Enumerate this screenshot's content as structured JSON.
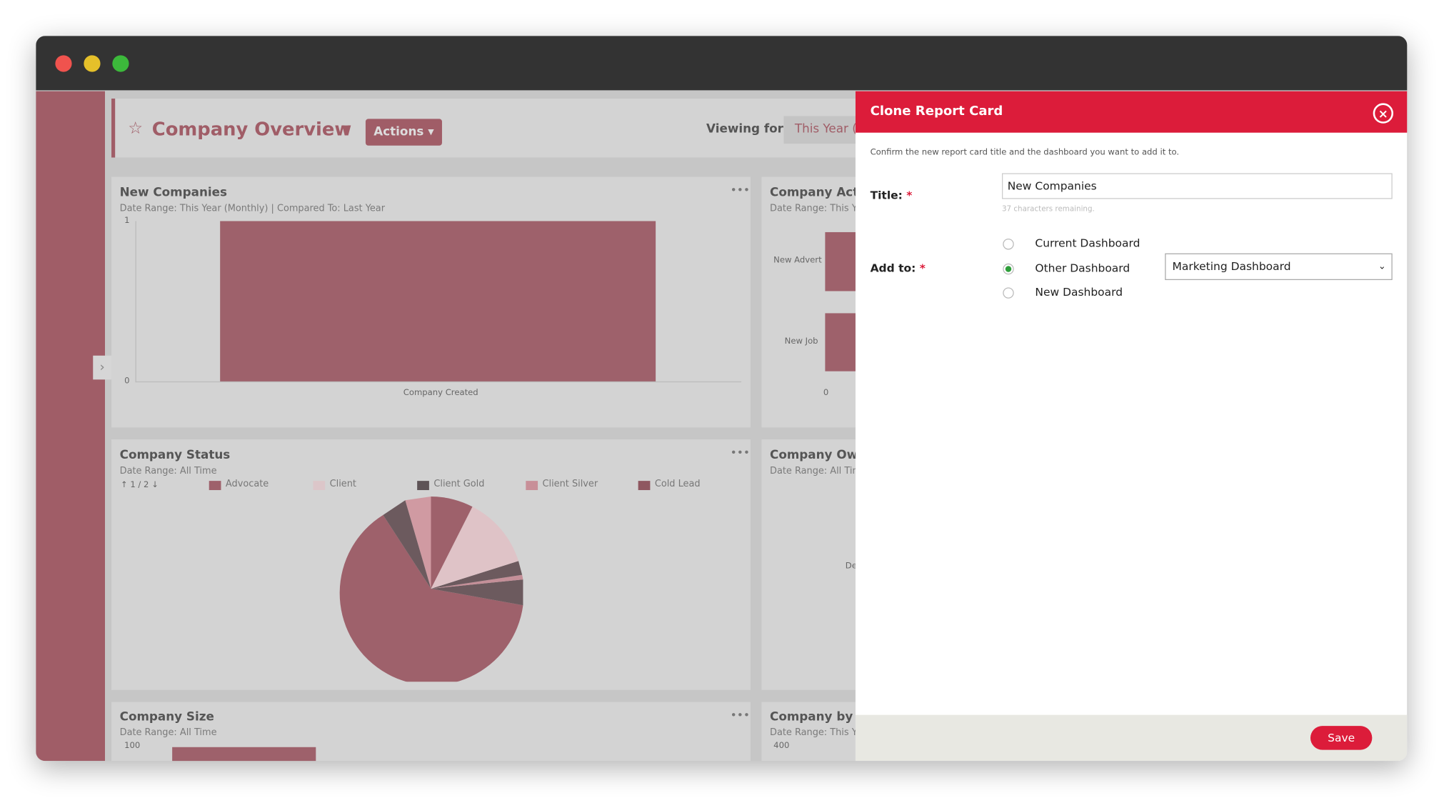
{
  "dashboard": {
    "title": "Company Overview",
    "actions": "Actions",
    "viewing_label": "Viewing for:",
    "viewing_value": "This Year (",
    "cards": [
      {
        "title": "New Companies",
        "subtitle": "Date Range: This Year (Monthly) | Compared To: Last Year",
        "y_top": "1",
        "y_bottom": "0",
        "x_label": "Company Created"
      },
      {
        "title": "Company Activ",
        "subtitle": "Date Range: This Yea",
        "cat1": "New Advert",
        "cat2": "New Job",
        "x0": "0"
      },
      {
        "title": "Company Status",
        "subtitle": "Date Range: All Time",
        "pager": "1 / 2",
        "legend": [
          "Advocate",
          "Client",
          "Client Gold",
          "Client Silver",
          "Cold Lead"
        ]
      },
      {
        "title": "Company Owne",
        "subtitle": "Date Range: All Time",
        "label": "De"
      },
      {
        "title": "Company Size",
        "subtitle": "Date Range: All Time",
        "y_top": "100"
      },
      {
        "title": "Company by In",
        "subtitle": "Date Range: This Yea",
        "y_top": "400"
      }
    ]
  },
  "modal": {
    "title": "Clone Report Card",
    "intro": "Confirm the new report card title and the dashboard you want to add it to.",
    "title_label": "Title:",
    "required": "*",
    "title_value": "New Companies",
    "remaining": "37 characters remaining.",
    "add_label": "Add to:",
    "options": [
      "Current Dashboard",
      "Other Dashboard",
      "New Dashboard"
    ],
    "select_value": "Marketing Dashboard",
    "save": "Save"
  }
}
